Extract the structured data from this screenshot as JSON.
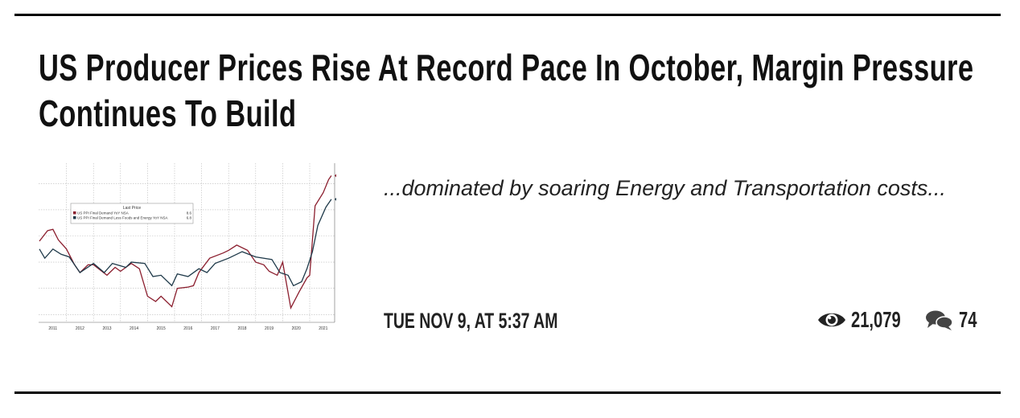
{
  "article": {
    "title": "US Producer Prices Rise At Record Pace In October, Margin Pressure Continues To Build",
    "excerpt": "...dominated by soaring Energy and Transportation costs...",
    "date": "TUE NOV 9, AT 5:37 AM",
    "views": "21,079",
    "comments": "74",
    "icons": {
      "views": "eye-icon",
      "comments": "comments-icon"
    }
  },
  "chart_data": {
    "type": "line",
    "legend_title": "Last Price",
    "legend_placement": "top-left",
    "grid": true,
    "x_tick_labels": [
      "2011",
      "2012",
      "2013",
      "2014",
      "2015",
      "2016",
      "2017",
      "2018",
      "2019",
      "2020",
      "2021"
    ],
    "ylim": [
      -3,
      9.5
    ],
    "series": [
      {
        "name": "US PPI Final Demand YoY NSA",
        "last": "8.6",
        "color": "#8b1e2e",
        "x": [
          2011.0,
          2011.3,
          2011.5,
          2011.7,
          2012.0,
          2012.3,
          2012.5,
          2012.8,
          2013.0,
          2013.5,
          2013.8,
          2014.0,
          2014.4,
          2014.7,
          2015.0,
          2015.3,
          2015.5,
          2015.9,
          2016.1,
          2016.5,
          2016.7,
          2016.9,
          2017.3,
          2017.8,
          2018.0,
          2018.3,
          2018.7,
          2019.0,
          2019.3,
          2019.5,
          2019.8,
          2020.0,
          2020.3,
          2020.6,
          2020.9,
          2021.0,
          2021.2,
          2021.5,
          2021.7,
          2021.8
        ],
        "y": [
          3.6,
          4.4,
          4.5,
          3.7,
          3.0,
          1.8,
          1.2,
          1.8,
          1.8,
          1.0,
          1.6,
          1.3,
          1.9,
          1.5,
          -0.6,
          -1.0,
          -0.6,
          -1.4,
          0.0,
          0.1,
          0.2,
          1.2,
          2.3,
          2.7,
          2.9,
          3.3,
          2.9,
          2.0,
          1.8,
          1.3,
          1.0,
          2.0,
          -1.5,
          -0.3,
          0.8,
          1.0,
          6.3,
          7.3,
          8.3,
          8.6
        ]
      },
      {
        "name": "US PPI Final Demand Less Foods and Energy YoY NSA",
        "last": "6.8",
        "color": "#1f3a4a",
        "x": [
          2011.0,
          2011.2,
          2011.5,
          2011.8,
          2012.1,
          2012.5,
          2013.0,
          2013.4,
          2013.7,
          2014.2,
          2014.4,
          2014.9,
          2015.2,
          2015.5,
          2015.9,
          2016.1,
          2016.5,
          2016.9,
          2017.2,
          2017.5,
          2018.0,
          2018.5,
          2019.0,
          2019.6,
          2019.9,
          2020.2,
          2020.4,
          2020.7,
          2020.9,
          2021.1,
          2021.3,
          2021.6,
          2021.8
        ],
        "y": [
          3.0,
          2.3,
          3.0,
          2.6,
          2.4,
          1.2,
          1.9,
          1.2,
          1.9,
          1.6,
          2.0,
          1.9,
          0.9,
          1.0,
          0.2,
          1.1,
          0.9,
          1.5,
          1.2,
          1.9,
          2.3,
          2.8,
          2.4,
          2.2,
          1.2,
          1.0,
          0.2,
          0.5,
          1.5,
          2.8,
          4.8,
          6.2,
          6.8
        ]
      }
    ]
  }
}
